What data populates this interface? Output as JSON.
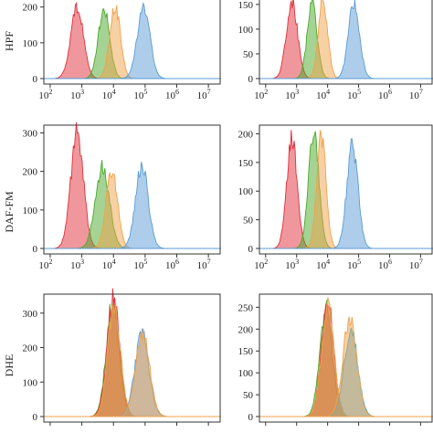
{
  "colors": {
    "red": "#e0303a",
    "green": "#4aa82a",
    "orange": "#f0a24a",
    "blue": "#5b9bd5",
    "cyan": "#2aa6d8"
  },
  "rows": [
    {
      "label": "HPF"
    },
    {
      "label": "DAF-FM"
    },
    {
      "label": "DHE"
    }
  ],
  "chart_data": [
    {
      "type": "area",
      "row": 0,
      "col": 0,
      "xscale": "log",
      "xticks": [
        "10^2",
        "10^3",
        "10^4",
        "10^5",
        "10^6",
        "10^7"
      ],
      "yticks": [
        0,
        100,
        200
      ],
      "ylim": [
        0,
        235
      ],
      "series": [
        {
          "color": "red",
          "peak_log10": 2.85,
          "sd": 0.2,
          "peak": 200
        },
        {
          "color": "green",
          "peak_log10": 3.7,
          "sd": 0.18,
          "peak": 195
        },
        {
          "color": "orange",
          "peak_log10": 4.05,
          "sd": 0.17,
          "peak": 200
        },
        {
          "color": "blue",
          "peak_log10": 4.95,
          "sd": 0.2,
          "peak": 200
        }
      ]
    },
    {
      "type": "area",
      "row": 0,
      "col": 1,
      "xscale": "log",
      "xticks": [
        "10^2",
        "10^3",
        "10^4",
        "10^5",
        "10^6",
        "10^7"
      ],
      "yticks": [
        0,
        50,
        100,
        150
      ],
      "ylim": [
        0,
        170
      ],
      "series": [
        {
          "color": "red",
          "peak_log10": 2.85,
          "sd": 0.18,
          "peak": 155
        },
        {
          "color": "green",
          "peak_log10": 3.5,
          "sd": 0.16,
          "peak": 150
        },
        {
          "color": "orange",
          "peak_log10": 3.85,
          "sd": 0.15,
          "peak": 160
        },
        {
          "color": "blue",
          "peak_log10": 4.85,
          "sd": 0.18,
          "peak": 150
        }
      ]
    },
    {
      "type": "area",
      "row": 1,
      "col": 0,
      "xscale": "log",
      "xticks": [
        "10^2",
        "10^3",
        "10^4",
        "10^5",
        "10^6",
        "10^7"
      ],
      "yticks": [
        0,
        100,
        200,
        300
      ],
      "ylim": [
        0,
        320
      ],
      "series": [
        {
          "color": "red",
          "peak_log10": 2.85,
          "sd": 0.2,
          "peak": 300
        },
        {
          "color": "green",
          "peak_log10": 3.65,
          "sd": 0.22,
          "peak": 215
        },
        {
          "color": "orange",
          "peak_log10": 3.95,
          "sd": 0.18,
          "peak": 205
        },
        {
          "color": "blue",
          "peak_log10": 4.9,
          "sd": 0.2,
          "peak": 215
        }
      ]
    },
    {
      "type": "area",
      "row": 1,
      "col": 1,
      "xscale": "log",
      "xticks": [
        "10^2",
        "10^3",
        "10^4",
        "10^5",
        "10^6",
        "10^7"
      ],
      "yticks": [
        0,
        50,
        100,
        150,
        200
      ],
      "ylim": [
        0,
        215
      ],
      "series": [
        {
          "color": "red",
          "peak_log10": 2.85,
          "sd": 0.17,
          "peak": 190
        },
        {
          "color": "green",
          "peak_log10": 3.55,
          "sd": 0.17,
          "peak": 200
        },
        {
          "color": "orange",
          "peak_log10": 3.8,
          "sd": 0.15,
          "peak": 195
        },
        {
          "color": "blue",
          "peak_log10": 4.8,
          "sd": 0.18,
          "peak": 180
        }
      ]
    },
    {
      "type": "area",
      "row": 2,
      "col": 0,
      "xscale": "log",
      "xticks": [
        "",
        "",
        "",
        "",
        "",
        ""
      ],
      "yticks": [
        0,
        100,
        200,
        300
      ],
      "ylim": [
        0,
        355
      ],
      "series": [
        {
          "color": "green",
          "peak_log10": 3.98,
          "sd": 0.2,
          "peak": 335
        },
        {
          "color": "red",
          "peak_log10": 4.0,
          "sd": 0.2,
          "peak": 345
        },
        {
          "color": "orange",
          "peak_log10": 4.02,
          "sd": 0.2,
          "peak": 320
        },
        {
          "color": "blue",
          "peak_log10": 4.9,
          "sd": 0.22,
          "peak": 240
        },
        {
          "color": "orange",
          "peak_log10": 4.92,
          "sd": 0.22,
          "peak": 245
        }
      ]
    },
    {
      "type": "area",
      "row": 2,
      "col": 1,
      "xscale": "log",
      "xticks": [
        "",
        "",
        "",
        "",
        "",
        ""
      ],
      "yticks": [
        0,
        50,
        100,
        150,
        200,
        250
      ],
      "ylim": [
        0,
        280
      ],
      "series": [
        {
          "color": "green",
          "peak_log10": 3.95,
          "sd": 0.2,
          "peak": 250
        },
        {
          "color": "red",
          "peak_log10": 4.0,
          "sd": 0.2,
          "peak": 265
        },
        {
          "color": "orange",
          "peak_log10": 4.0,
          "sd": 0.2,
          "peak": 255
        },
        {
          "color": "cyan",
          "peak_log10": 4.75,
          "sd": 0.22,
          "peak": 200
        },
        {
          "color": "orange",
          "peak_log10": 4.72,
          "sd": 0.22,
          "peak": 225
        }
      ]
    }
  ]
}
